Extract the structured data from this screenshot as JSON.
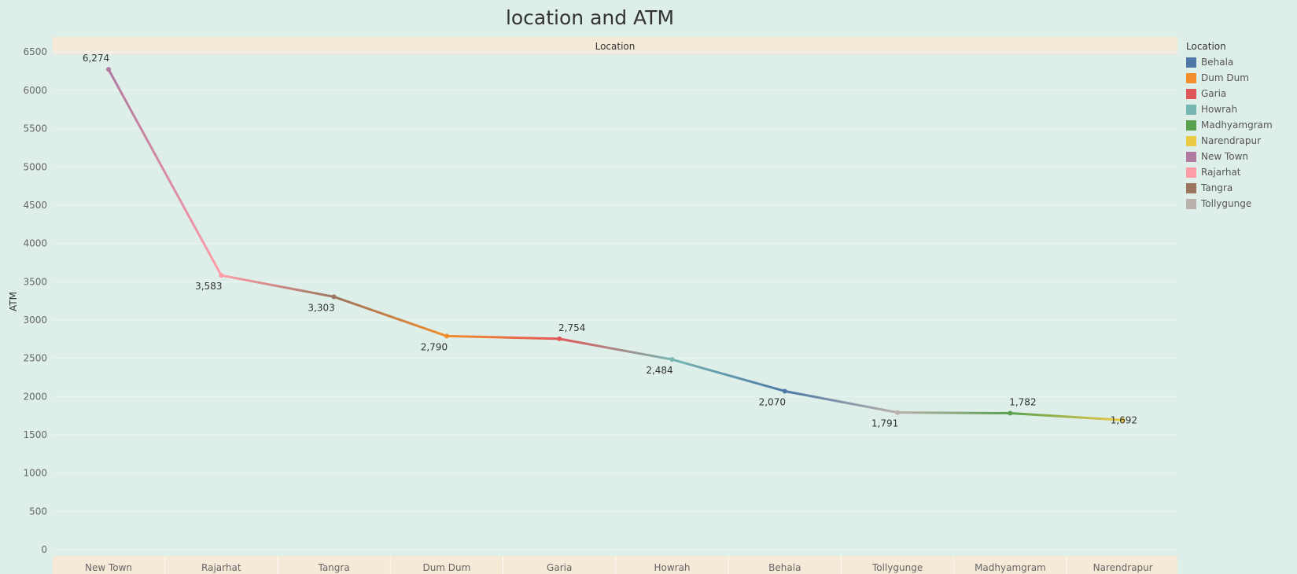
{
  "chart_data": {
    "type": "line",
    "title": "location and ATM",
    "header_label": "Location",
    "ylabel": "ATM",
    "ylim": [
      0,
      6500
    ],
    "yticks": [
      0,
      500,
      1000,
      1500,
      2000,
      2500,
      3000,
      3500,
      4000,
      4500,
      5000,
      5500,
      6000,
      6500
    ],
    "categories": [
      "New Town",
      "Rajarhat",
      "Tangra",
      "Dum Dum",
      "Garia",
      "Howrah",
      "Behala",
      "Tollygunge",
      "Madhyamgram",
      "Narendrapur"
    ],
    "values": [
      6274,
      3583,
      3303,
      2790,
      2754,
      2484,
      2070,
      1791,
      1782,
      1692
    ],
    "data_labels": [
      "6,274",
      "3,583",
      "3,303",
      "2,790",
      "2,754",
      "2,484",
      "2,070",
      "1,791",
      "1,782",
      "1,692"
    ],
    "grid": true,
    "legend": {
      "title": "Location",
      "position": "right",
      "items": [
        {
          "name": "Behala",
          "color": "#4e79a7"
        },
        {
          "name": "Dum Dum",
          "color": "#f28e2b"
        },
        {
          "name": "Garia",
          "color": "#e15759"
        },
        {
          "name": "Howrah",
          "color": "#76b7b2"
        },
        {
          "name": "Madhyamgram",
          "color": "#59a14f"
        },
        {
          "name": "Narendrapur",
          "color": "#edc948"
        },
        {
          "name": "New Town",
          "color": "#b07aa1"
        },
        {
          "name": "Rajarhat",
          "color": "#ff9da7"
        },
        {
          "name": "Tangra",
          "color": "#9c755f"
        },
        {
          "name": "Tollygunge",
          "color": "#bab0ac"
        }
      ]
    }
  }
}
